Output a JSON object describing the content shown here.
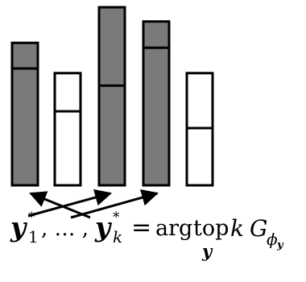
{
  "colors": {
    "selected_fill": "#7a7a7a",
    "unselected_fill": "#ffffff",
    "stroke": "#000000"
  },
  "columns": [
    {
      "id": "col-1",
      "selected": true,
      "divider_fraction": 0.18,
      "height_level": 0.8
    },
    {
      "id": "col-2",
      "selected": false,
      "divider_fraction": 0.34,
      "height_level": 0.63
    },
    {
      "id": "col-3",
      "selected": true,
      "divider_fraction": 0.44,
      "height_level": 1.0
    },
    {
      "id": "col-4",
      "selected": true,
      "divider_fraction": 0.16,
      "height_level": 0.92
    },
    {
      "id": "col-5",
      "selected": false,
      "divider_fraction": 0.49,
      "height_level": 0.63
    }
  ],
  "arrows": [
    {
      "from": "label",
      "to": "col-1"
    },
    {
      "from": "label",
      "to": "col-3"
    },
    {
      "from": "label",
      "to": "col-4"
    }
  ],
  "formula": {
    "y": "y",
    "sup_star": "*",
    "sub_1": "1",
    "sub_k": "k",
    "comma_dots": ", … , ",
    "equals": "=",
    "arg": "arg",
    "top": "top",
    "under_y": "y",
    "k": "k",
    "G": "G",
    "phi": "ϕ",
    "sub_y": "y"
  }
}
